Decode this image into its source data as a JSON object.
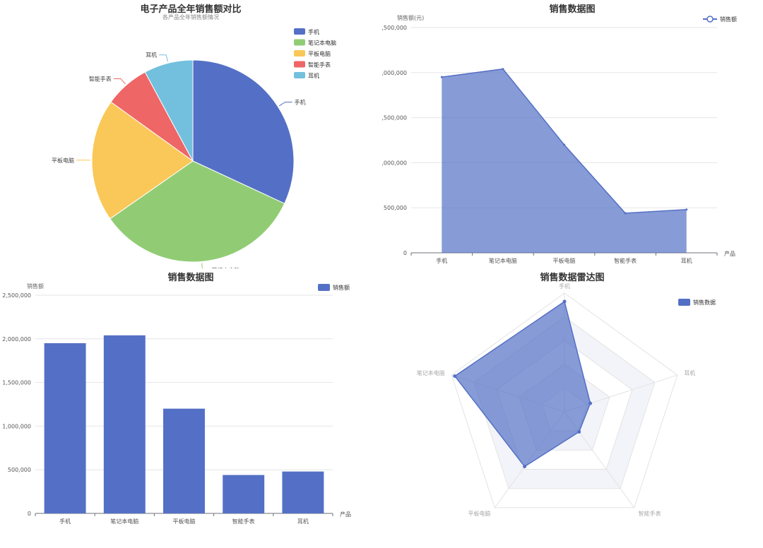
{
  "colors": {
    "primary": "#5470c6",
    "green": "#91cc75",
    "yellow": "#fac858",
    "red": "#ee6666",
    "lightblue": "#73c0de"
  },
  "chart_data": [
    {
      "type": "pie",
      "title": "电子产品全年销售额对比",
      "subtitle": "各产品全年销售额情况",
      "legend_position": "top-right",
      "categories": [
        "手机",
        "笔记本电脑",
        "平板电脑",
        "智能手表",
        "耳机"
      ],
      "values": [
        1950000,
        2040000,
        1200000,
        440000,
        480000
      ],
      "colors": [
        "#5470c6",
        "#91cc75",
        "#fac858",
        "#ee6666",
        "#73c0de"
      ]
    },
    {
      "type": "area",
      "title": "销售数据图",
      "ylabel": "销售额(元)",
      "xlabel": "产品",
      "legend_position": "top-right",
      "categories": [
        "手机",
        "笔记本电脑",
        "平板电脑",
        "智能手表",
        "耳机"
      ],
      "ylim": [
        0,
        2500000
      ],
      "yticks": [
        "0",
        "500,000",
        "1,000,000",
        "1,500,000",
        "2,000,000",
        "2,500,000"
      ],
      "series": [
        {
          "name": "销售额",
          "values": [
            1950000,
            2040000,
            1200000,
            440000,
            480000
          ]
        }
      ]
    },
    {
      "type": "bar",
      "title": "销售数据图",
      "ylabel": "销售额",
      "xlabel": "产品",
      "legend_position": "top-right",
      "categories": [
        "手机",
        "笔记本电脑",
        "平板电脑",
        "智能手表",
        "耳机"
      ],
      "ylim": [
        0,
        2500000
      ],
      "yticks": [
        "0",
        "500,000",
        "1,000,000",
        "1,500,000",
        "2,000,000",
        "2,500,000"
      ],
      "series": [
        {
          "name": "销售额",
          "values": [
            1950000,
            2040000,
            1200000,
            440000,
            480000
          ]
        }
      ]
    },
    {
      "type": "radar",
      "title": "销售数据雷达图",
      "legend_position": "top-right",
      "indicators": [
        "手机",
        "耳机",
        "智能手表",
        "平板电脑",
        "笔记本电脑"
      ],
      "max": 2100000,
      "series": [
        {
          "name": "销售数据",
          "values": [
            1950000,
            480000,
            440000,
            1200000,
            2040000
          ]
        }
      ]
    }
  ]
}
